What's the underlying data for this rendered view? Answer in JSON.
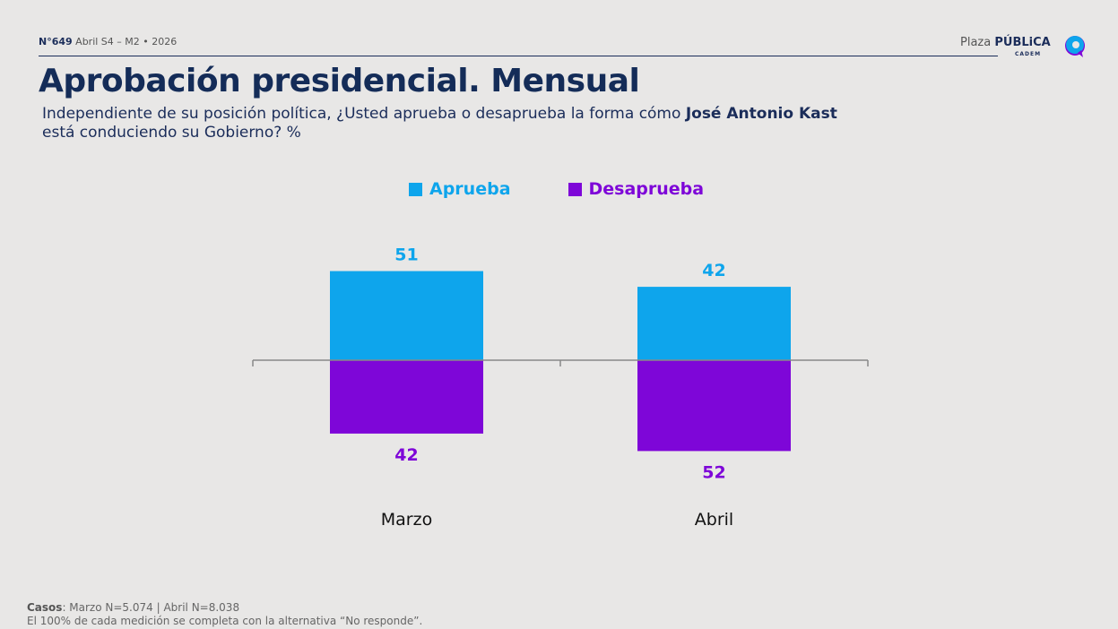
{
  "header": {
    "edition_number": "N°649",
    "edition_detail": "Abril S4 – M2 • 2026",
    "logo_plaza": "Plaza",
    "logo_publica": "PÚBLiCA",
    "logo_sub": "CADEM"
  },
  "title": "Aprobación presidencial. Mensual",
  "subtitle": {
    "pre": "Independiente de su posición política, ¿Usted aprueba o desaprueba la forma cómo ",
    "name": "José Antonio Kast",
    "post": " está conduciendo su Gobierno? %"
  },
  "colors": {
    "aprueba": "#0ea5ec",
    "desaprueba": "#7e06d8"
  },
  "chart_data": {
    "type": "bar",
    "stacked_diverging": true,
    "categories": [
      "Marzo",
      "Abril"
    ],
    "series": [
      {
        "name": "Aprueba",
        "values": [
          51,
          42
        ]
      },
      {
        "name": "Desaprueba",
        "values": [
          42,
          52
        ]
      }
    ],
    "legend_position": "top-center",
    "grid": false
  },
  "footer": {
    "casos_label": "Casos",
    "casos_text": ": Marzo N=5.074 | Abril N=8.038",
    "note": "El 100% de cada medición se completa con la alternativa “No responde”."
  }
}
